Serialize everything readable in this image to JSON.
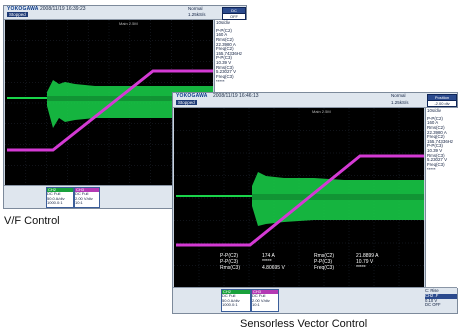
{
  "colors": {
    "green_trace": "#19d44a",
    "magenta_trace": "#d43ad4",
    "screen_bg": "#000000",
    "frame": "#c9d3df",
    "accent": "#2b4a8d"
  },
  "vf": {
    "caption": "V/F Control",
    "logo": "YOKOGAWA",
    "timestamp": "2008/11/19 16:39:23",
    "run_state": "Stopped",
    "trigger_mode": "Normal",
    "sample_rate": "1.25kS/s",
    "trig_btn_label": "DC",
    "trig_btn2_label": "OFF",
    "time_div": "10s/div",
    "screen_top_label": "Main 2.5M",
    "side": [
      "P-P(C2)",
      "160 A",
      "Rms(C2)",
      "22.3980 A",
      "Freq(C2)",
      "155.74336Hz",
      "P-P(C3)",
      "10.39 V",
      "Rms(C3)",
      "5.23027 V",
      "Freq(C3)",
      "*****"
    ],
    "ch2": {
      "header": "CH2",
      "lines": [
        "DC Full",
        "50.0 A/div",
        "1000.0:1"
      ]
    },
    "ch3": {
      "header": "CH3",
      "lines": [
        "DC Full",
        "2.00 V/div",
        "10:1"
      ]
    }
  },
  "svc": {
    "caption": "Sensorless Vector Control",
    "logo": "YOKOGAWA",
    "timestamp": "2008/11/19 16:46:13",
    "run_state": "Stopped",
    "trigger_mode": "Normal",
    "sample_rate": "1.25kS/s",
    "trig_btn_label": "Position",
    "trig_btn2_label": "-2.00 div",
    "time_div": "10s/div",
    "screen_top_label": "Main 2.5M",
    "side": [
      "P-P(C2)",
      "160 A",
      "Rms(C2)",
      "22.3980 A",
      "Freq(C2)",
      "155.74336Hz",
      "P-P(C3)",
      "10.39 V",
      "Rms(C3)",
      "5.23027 V",
      "Freq(C3)",
      "*****"
    ],
    "meas_col1": [
      "P-P(C2)",
      "P-P(C3)",
      "Rms(C3)"
    ],
    "meas_col2": [
      "174 A",
      "*****",
      "4.80695 V"
    ],
    "meas_col3": [
      "Rms(C2)",
      "P-P(C3)",
      "Freq(C3)"
    ],
    "meas_col4": [
      "21.8899 A",
      "10.79 V",
      "*****"
    ],
    "ch2": {
      "header": "CH2",
      "lines": [
        "DC Full",
        "50.0 A/div",
        "1000.0:1"
      ]
    },
    "ch3": {
      "header": "CH3",
      "lines": [
        "DC Full",
        "2.00 V/div",
        "10:1"
      ]
    },
    "trig_info": [
      "C: Rise",
      "CH2 .F",
      "0.10 V",
      "DC OFF"
    ]
  }
}
